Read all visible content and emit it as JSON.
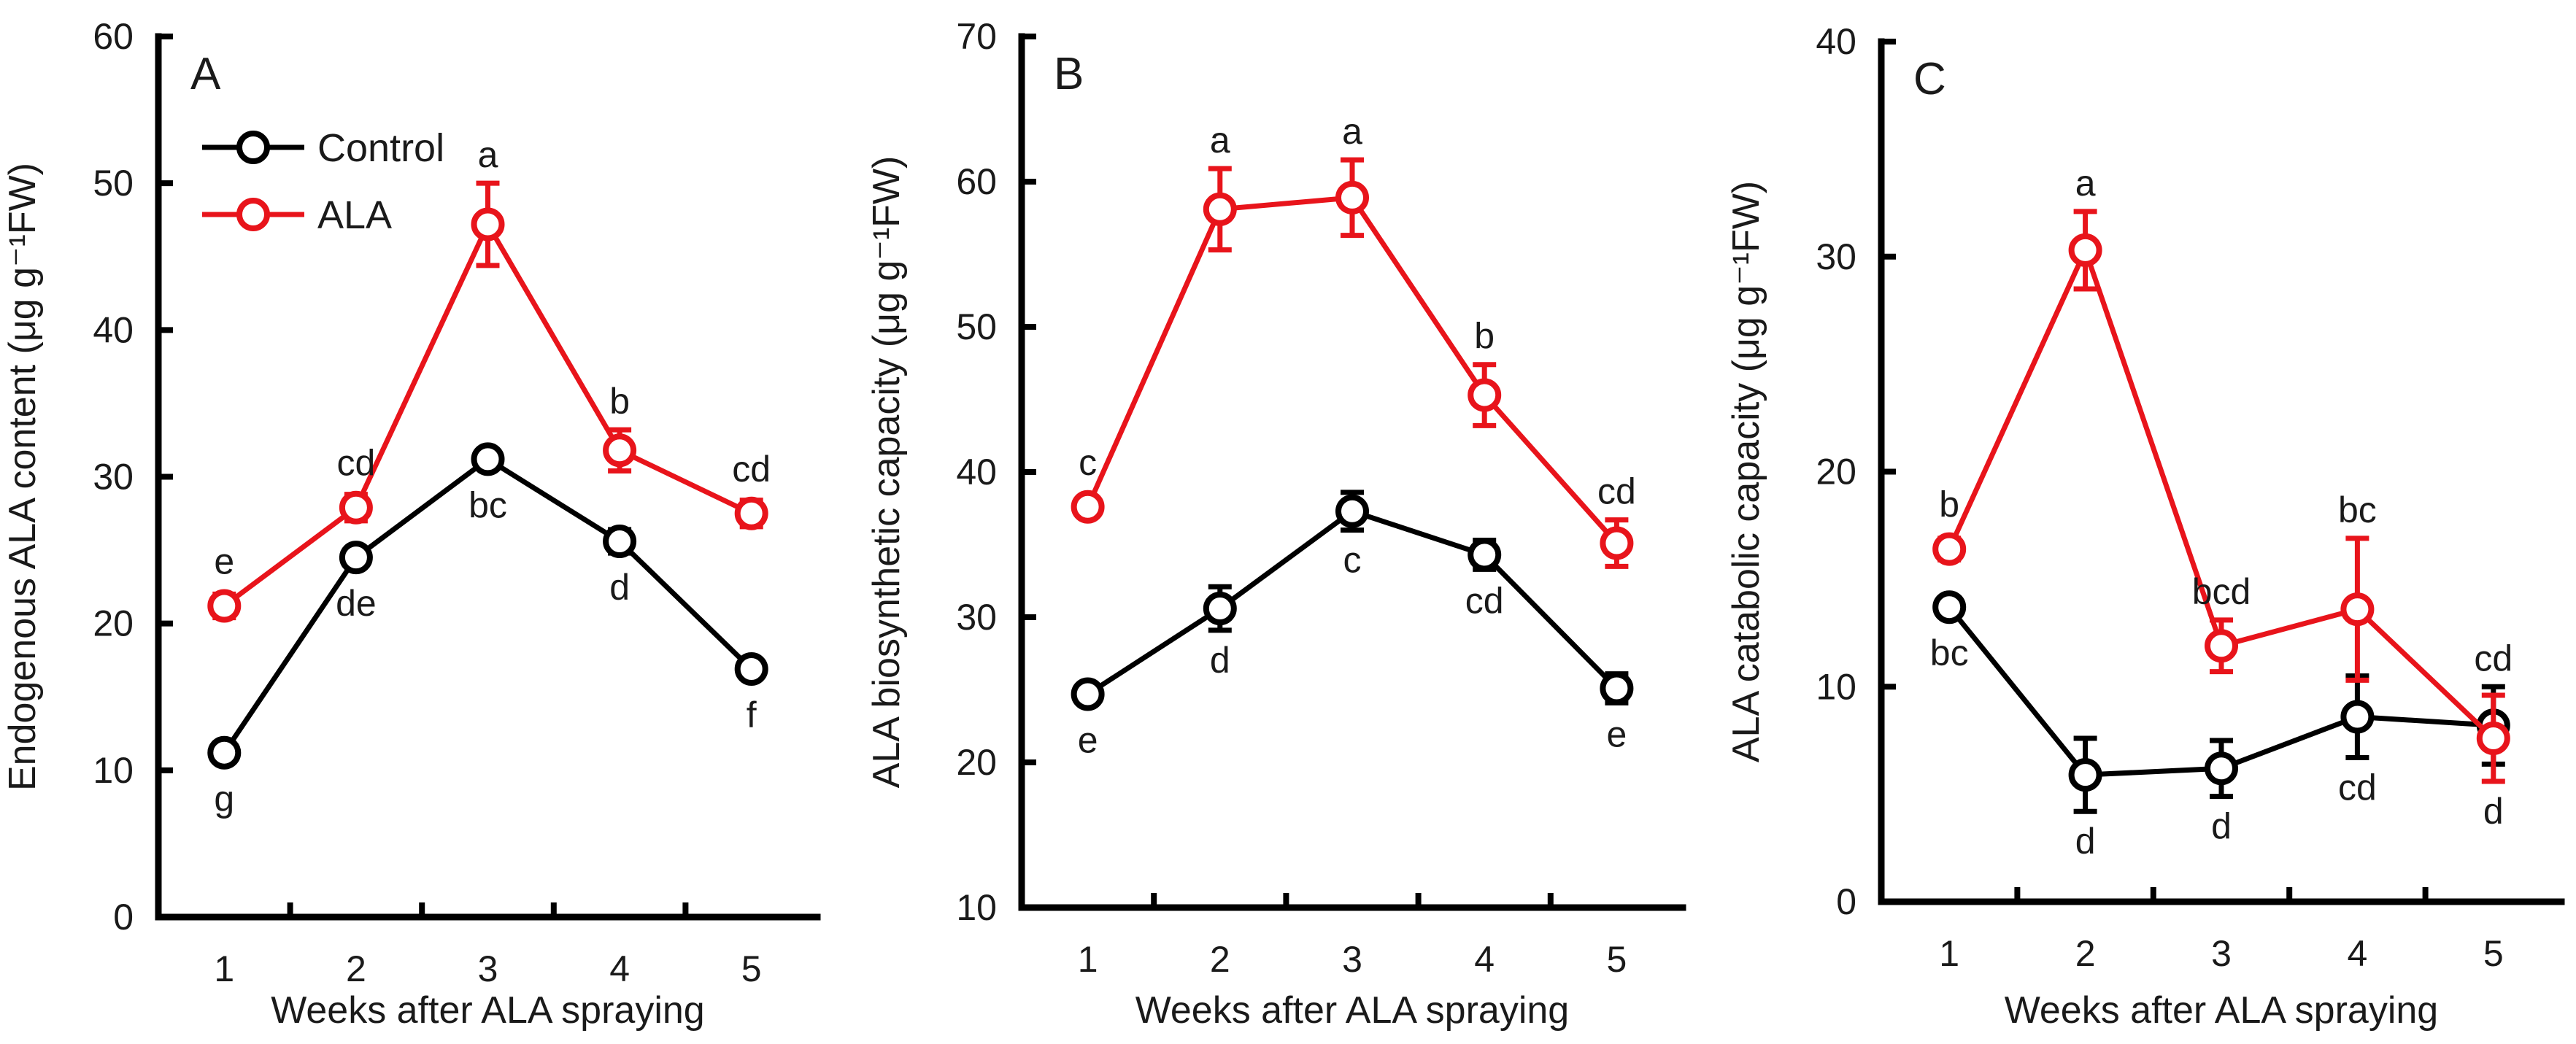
{
  "chart_data": [
    {
      "type": "line",
      "panel": "A",
      "xlabel": "Weeks after ALA spraying",
      "ylabel": "Endogenous ALA content (μg g⁻¹FW)",
      "x": [
        1,
        2,
        3,
        4,
        5
      ],
      "xlim": [
        0.5,
        5.5
      ],
      "ylim": [
        0,
        60
      ],
      "yticks": [
        0,
        10,
        20,
        30,
        40,
        50,
        60
      ],
      "legend": true,
      "legend_position": "top-left",
      "series": [
        {
          "name": "Control",
          "color": "#000000",
          "values": [
            11.2,
            24.5,
            31.2,
            25.6,
            16.9
          ],
          "errors": [
            0.5,
            0.6,
            0.6,
            0.8,
            0.6
          ],
          "labels": [
            "g",
            "de",
            "bc",
            "d",
            "f"
          ],
          "label_positions": [
            "below",
            "below",
            "below",
            "below",
            "below"
          ]
        },
        {
          "name": "ALA",
          "color": "#e8141b",
          "values": [
            21.2,
            27.9,
            47.2,
            31.8,
            27.5
          ],
          "errors": [
            0.8,
            0.9,
            2.8,
            1.4,
            0.9
          ],
          "labels": [
            "e",
            "cd",
            "a",
            "b",
            "cd"
          ],
          "label_positions": [
            "above",
            "above",
            "above",
            "above",
            "above"
          ]
        }
      ]
    },
    {
      "type": "line",
      "panel": "B",
      "xlabel": "Weeks after ALA spraying",
      "ylabel": "ALA biosynthetic capacity (μg g⁻¹FW)",
      "x": [
        1,
        2,
        3,
        4,
        5
      ],
      "xlim": [
        0.5,
        5.5
      ],
      "ylim": [
        10,
        70
      ],
      "yticks": [
        10,
        20,
        30,
        40,
        50,
        60,
        70
      ],
      "legend": false,
      "series": [
        {
          "name": "Control",
          "color": "#000000",
          "values": [
            24.7,
            30.6,
            37.3,
            34.3,
            25.1
          ],
          "errors": [
            0.5,
            1.5,
            1.3,
            1.0,
            1.0
          ],
          "labels": [
            "e",
            "d",
            "c",
            "cd",
            "e"
          ],
          "label_positions": [
            "below",
            "below",
            "below",
            "below",
            "below"
          ]
        },
        {
          "name": "ALA",
          "color": "#e8141b",
          "values": [
            37.6,
            58.1,
            58.9,
            45.3,
            35.1
          ],
          "errors": [
            0.5,
            2.8,
            2.6,
            2.1,
            1.6
          ],
          "labels": [
            "c",
            "a",
            "a",
            "b",
            "cd"
          ],
          "label_positions": [
            "above",
            "above",
            "above",
            "above",
            "above"
          ]
        }
      ]
    },
    {
      "type": "line",
      "panel": "C",
      "xlabel": "Weeks after ALA spraying",
      "ylabel": "ALA catabolic capacity (μg g⁻¹FW)",
      "x": [
        1,
        2,
        3,
        4,
        5
      ],
      "xlim": [
        0.5,
        5.5
      ],
      "ylim": [
        0,
        40
      ],
      "yticks": [
        0,
        10,
        20,
        30,
        40
      ],
      "legend": false,
      "series": [
        {
          "name": "Control",
          "color": "#000000",
          "values": [
            13.7,
            5.9,
            6.2,
            8.6,
            8.2
          ],
          "errors": [
            0.4,
            1.7,
            1.3,
            1.9,
            1.8
          ],
          "labels": [
            "bc",
            "d",
            "d",
            "cd",
            "cd"
          ],
          "label_positions": [
            "below",
            "below",
            "below",
            "below",
            "above"
          ]
        },
        {
          "name": "ALA",
          "color": "#e8141b",
          "values": [
            16.4,
            30.3,
            11.9,
            13.6,
            7.6
          ],
          "errors": [
            0.5,
            1.8,
            1.2,
            3.3,
            2.0
          ],
          "labels": [
            "b",
            "a",
            "bcd",
            "bc",
            "d"
          ],
          "label_positions": [
            "above",
            "above",
            "above",
            "above",
            "below"
          ]
        }
      ]
    }
  ]
}
